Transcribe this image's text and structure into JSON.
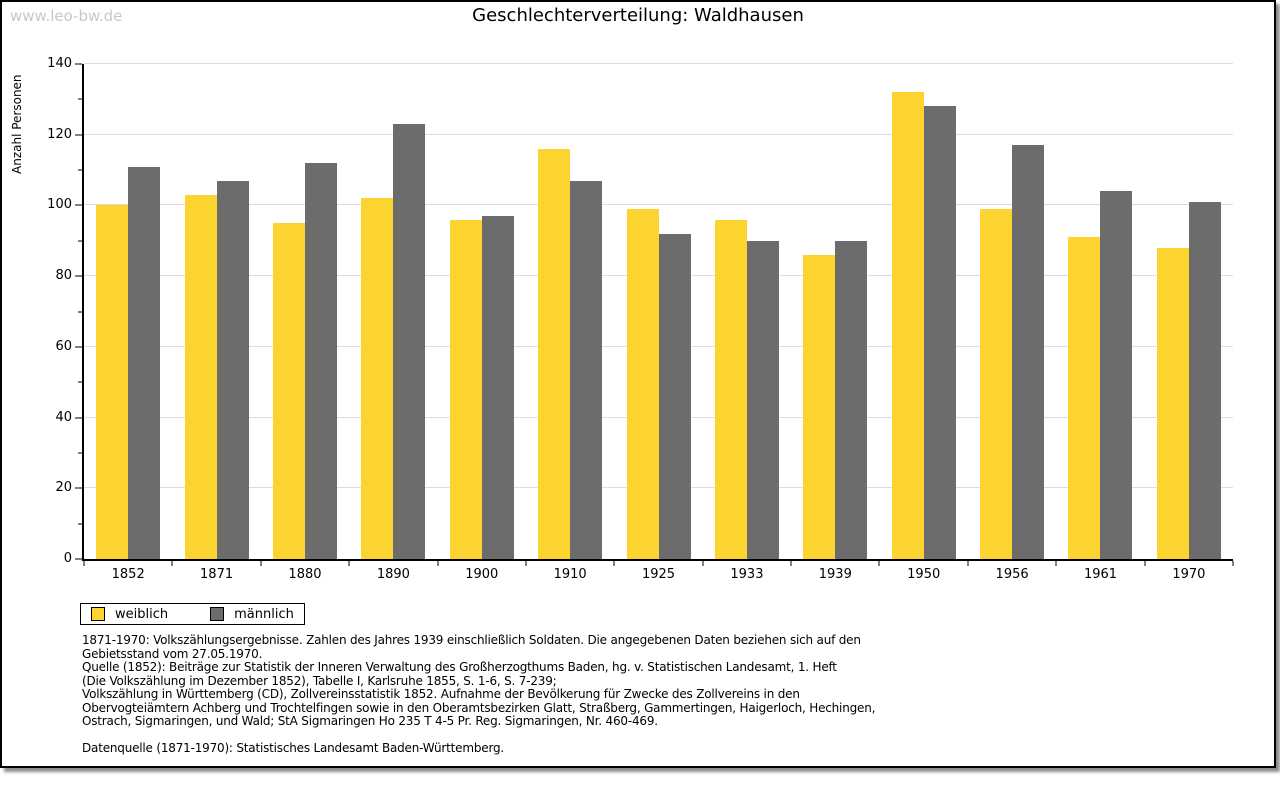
{
  "watermark": "www.leo-bw.de",
  "title": "Geschlechterverteilung: Waldhausen",
  "chart_data": {
    "type": "bar",
    "title": "Geschlechterverteilung: Waldhausen",
    "xlabel": "",
    "ylabel": "Anzahl Personen",
    "ylim": [
      0,
      140
    ],
    "ytick_major_step": 20,
    "ytick_minor_step": 10,
    "grid": true,
    "legend_position": "bottom-left",
    "categories": [
      "1852",
      "1871",
      "1880",
      "1890",
      "1900",
      "1910",
      "1925",
      "1933",
      "1939",
      "1950",
      "1956",
      "1961",
      "1970"
    ],
    "series": [
      {
        "name": "weiblich",
        "color": "#FCD42F",
        "values": [
          100,
          103,
          95,
          102,
          96,
          116,
          99,
          96,
          86,
          132,
          99,
          91,
          88
        ]
      },
      {
        "name": "männlich",
        "color": "#6C6C6C",
        "values": [
          111,
          107,
          112,
          123,
          97,
          107,
          92,
          90,
          90,
          128,
          117,
          104,
          101
        ]
      }
    ]
  },
  "colors": {
    "female": "#FCD42F",
    "male": "#6C6C6C",
    "gridline": "#DDDDDD",
    "axis": "#000000",
    "watermark": "#C8C8C8"
  },
  "footer": {
    "lines": [
      "1871-1970: Volkszählungsergebnisse. Zahlen des Jahres 1939 einschließlich Soldaten. Die angegebenen Daten beziehen sich auf den",
      "Gebietsstand vom 27.05.1970.",
      "Quelle (1852): Beiträge zur Statistik der Inneren Verwaltung des Großherzogthums Baden, hg. v. Statistischen Landesamt, 1. Heft",
      "(Die Volkszählung im Dezember 1852), Tabelle I, Karlsruhe 1855, S. 1-6, S. 7-239;",
      "Volkszählung in Württemberg (CD), Zollvereinsstatistik 1852. Aufnahme der Bevölkerung für Zwecke des Zollvereins in den",
      "Obervogteiämtern Achberg und Trochtelfingen sowie in den Oberamtsbezirken Glatt, Straßberg, Gammertingen, Haigerloch, Hechingen,",
      "Ostrach, Sigmaringen, und Wald; StA Sigmaringen Ho 235 T 4-5 Pr. Reg. Sigmaringen, Nr. 460-469.",
      "",
      "Datenquelle (1871-1970): Statistisches Landesamt Baden-Württemberg."
    ]
  }
}
